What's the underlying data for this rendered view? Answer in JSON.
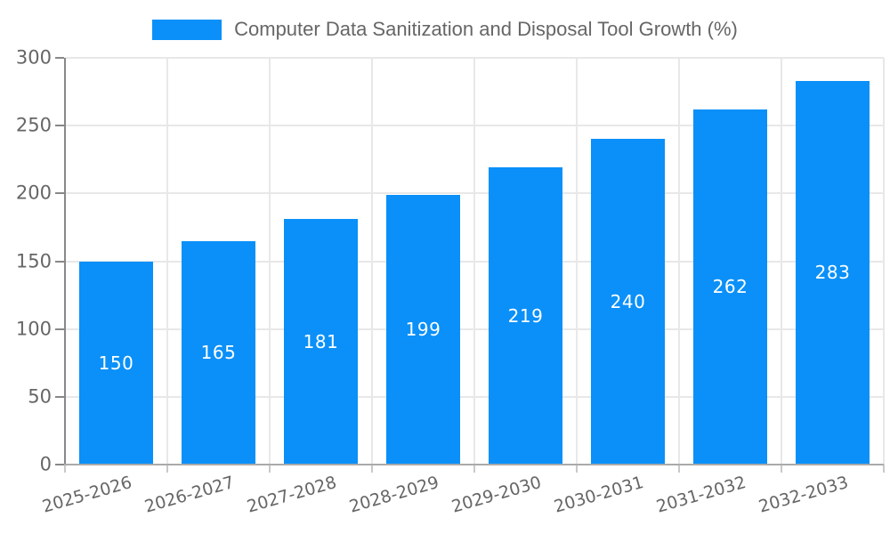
{
  "chart_data": {
    "type": "bar",
    "title": "Computer Data Sanitization and Disposal Tool Growth (%)",
    "categories": [
      "2025-2026",
      "2026-2027",
      "2027-2028",
      "2028-2029",
      "2029-2030",
      "2030-2031",
      "2031-2032",
      "2032-2033"
    ],
    "values": [
      150,
      165,
      181,
      199,
      219,
      240,
      262,
      283
    ],
    "xlabel": "",
    "ylabel": "",
    "ylim": [
      0,
      300
    ],
    "yticks": [
      0,
      50,
      100,
      150,
      200,
      250,
      300
    ],
    "grid": true,
    "legend_position": "top",
    "bar_color": "#0a90f8",
    "value_label_color": "#ffffff"
  },
  "colors": {
    "background": "#ffffff",
    "axis": "#888888",
    "x_axis": "#aaaaaa",
    "grid": "#e8e8e8",
    "tick_text": "#666666",
    "title_text": "#666666"
  }
}
